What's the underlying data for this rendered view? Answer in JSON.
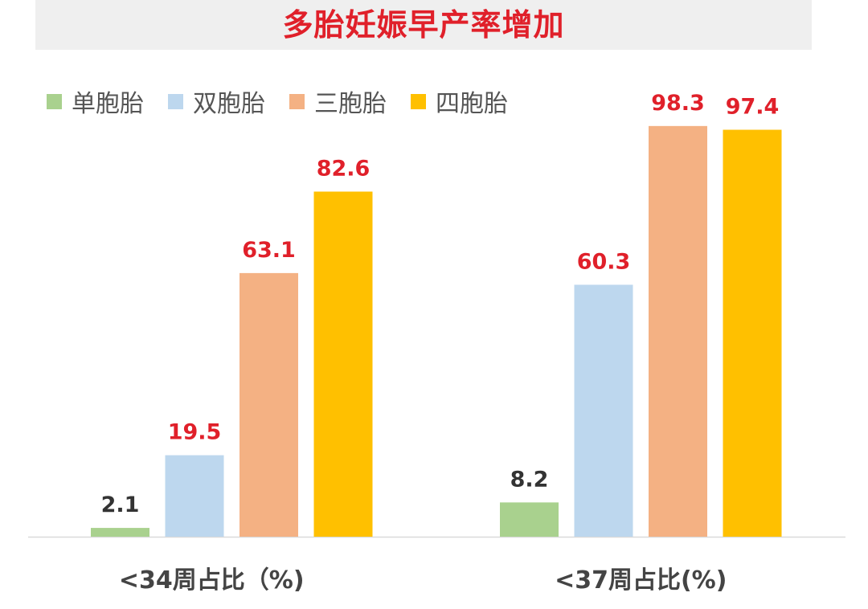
{
  "chart_data": {
    "type": "bar",
    "title": "多胎妊娠早产率增加",
    "categories": [
      "<34周占比（%)",
      "<37周占比(%)"
    ],
    "series": [
      {
        "name": "单胞胎",
        "color": "#a9d18e",
        "values": [
          2.1,
          8.2
        ]
      },
      {
        "name": "双胞胎",
        "color": "#bdd7ee",
        "values": [
          19.5,
          60.3
        ]
      },
      {
        "name": "三胞胎",
        "color": "#f4b183",
        "values": [
          63.1,
          98.3
        ]
      },
      {
        "name": "四胞胎",
        "color": "#ffc000",
        "values": [
          82.6,
          97.4
        ]
      }
    ],
    "ylim": [
      0,
      100
    ],
    "grid": false,
    "legend_position": "top-left",
    "label_colors": {
      "emphasis": "#e0202a",
      "normal": "#333333"
    }
  }
}
